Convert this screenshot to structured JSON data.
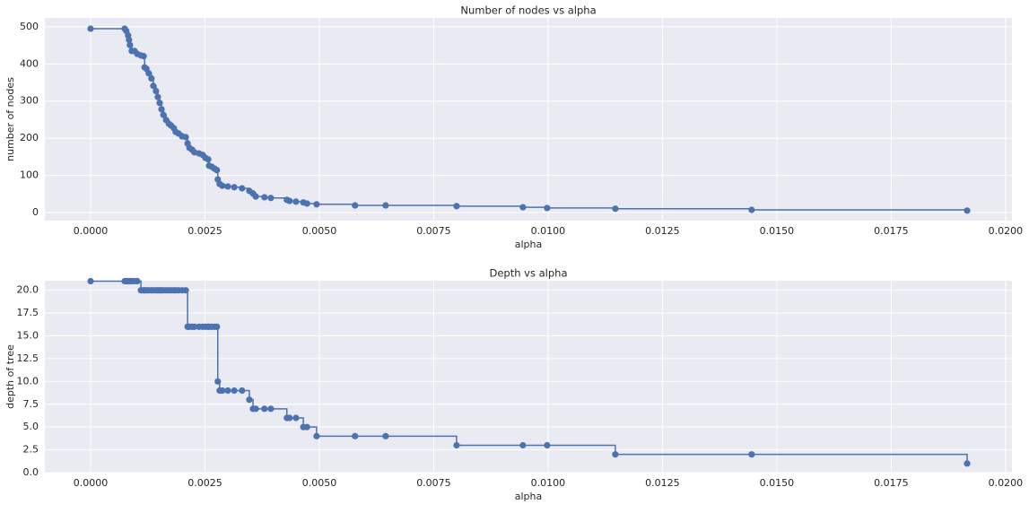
{
  "chart_data": [
    {
      "type": "step",
      "title": "Number of nodes vs alpha",
      "x_label": "alpha",
      "y_label": "number of nodes",
      "color": "#4c72b0",
      "grid": true,
      "x": [
        0,
        0.000745,
        0.00078,
        0.00082,
        0.00084,
        0.00086,
        0.0009,
        0.00096,
        0.00102,
        0.0011,
        0.00116,
        0.00118,
        0.00122,
        0.00127,
        0.00133,
        0.00137,
        0.00143,
        0.00147,
        0.00151,
        0.00155,
        0.00159,
        0.00165,
        0.00171,
        0.00176,
        0.00182,
        0.00186,
        0.00192,
        0.002,
        0.00208,
        0.00212,
        0.00216,
        0.00222,
        0.00227,
        0.00237,
        0.00245,
        0.00251,
        0.00257,
        0.00259,
        0.00265,
        0.00271,
        0.00276,
        0.00278,
        0.00282,
        0.00288,
        0.003,
        0.00314,
        0.00331,
        0.00347,
        0.00355,
        0.00361,
        0.0038,
        0.00394,
        0.00429,
        0.00435,
        0.00449,
        0.00465,
        0.00473,
        0.00494,
        0.00578,
        0.00645,
        0.008,
        0.00945,
        0.00998,
        0.01147,
        0.01445,
        0.01916
      ],
      "values": [
        495,
        495,
        489,
        477,
        465,
        451,
        435,
        435,
        427,
        423,
        421,
        391,
        387,
        375,
        361,
        341,
        327,
        311,
        295,
        278,
        263,
        249,
        239,
        234,
        227,
        217,
        213,
        205,
        203,
        186,
        174,
        169,
        162,
        159,
        155,
        147,
        143,
        126,
        123,
        118,
        114,
        89,
        77,
        72,
        70,
        68,
        65,
        58,
        51,
        43,
        41,
        39,
        34,
        31,
        29,
        27,
        24,
        22,
        19,
        19,
        17,
        14,
        12,
        10,
        7,
        5
      ],
      "xlim": [
        -0.001,
        0.02014
      ],
      "ylim": [
        -22,
        524
      ],
      "xticks": [
        {
          "value": 0,
          "label": "0.0000"
        },
        {
          "value": 0.0025,
          "label": "0.0025"
        },
        {
          "value": 0.005,
          "label": "0.0050"
        },
        {
          "value": 0.0075,
          "label": "0.0075"
        },
        {
          "value": 0.01,
          "label": "0.0100"
        },
        {
          "value": 0.0125,
          "label": "0.0125"
        },
        {
          "value": 0.015,
          "label": "0.0150"
        },
        {
          "value": 0.0175,
          "label": "0.0175"
        },
        {
          "value": 0.02,
          "label": "0.0200"
        }
      ],
      "yticks": [
        0,
        100,
        200,
        300,
        400,
        500
      ]
    },
    {
      "type": "step",
      "title": "Depth vs alpha",
      "x_label": "alpha",
      "y_label": "depth of tree",
      "color": "#4c72b0",
      "grid": true,
      "x": [
        0,
        0.000745,
        0.00078,
        0.00082,
        0.00084,
        0.00086,
        0.0009,
        0.00096,
        0.00102,
        0.0011,
        0.00116,
        0.00118,
        0.00122,
        0.00127,
        0.00133,
        0.00137,
        0.00143,
        0.00147,
        0.00151,
        0.00155,
        0.00159,
        0.00165,
        0.00171,
        0.00176,
        0.00182,
        0.00186,
        0.00192,
        0.002,
        0.00208,
        0.00212,
        0.00216,
        0.00222,
        0.00227,
        0.00237,
        0.00245,
        0.00251,
        0.00257,
        0.00259,
        0.00265,
        0.00271,
        0.00276,
        0.00278,
        0.00282,
        0.00288,
        0.003,
        0.00314,
        0.00331,
        0.00347,
        0.00355,
        0.00361,
        0.0038,
        0.00394,
        0.00429,
        0.00435,
        0.00449,
        0.00465,
        0.00473,
        0.00494,
        0.00578,
        0.00645,
        0.008,
        0.00945,
        0.00998,
        0.01147,
        0.01445,
        0.01916
      ],
      "values": [
        21,
        21,
        21,
        21,
        21,
        21,
        21,
        21,
        21,
        20,
        20,
        20,
        20,
        20,
        20,
        20,
        20,
        20,
        20,
        20,
        20,
        20,
        20,
        20,
        20,
        20,
        20,
        20,
        20,
        16,
        16,
        16,
        16,
        16,
        16,
        16,
        16,
        16,
        16,
        16,
        16,
        10,
        9,
        9,
        9,
        9,
        9,
        8,
        7,
        7,
        7,
        7,
        6,
        6,
        6,
        5,
        5,
        4,
        4,
        4,
        3,
        3,
        3,
        2,
        2,
        1
      ],
      "xlim": [
        -0.001,
        0.02014
      ],
      "ylim": [
        0,
        21.05
      ],
      "xticks": [
        {
          "value": 0,
          "label": "0.0000"
        },
        {
          "value": 0.0025,
          "label": "0.0025"
        },
        {
          "value": 0.005,
          "label": "0.0050"
        },
        {
          "value": 0.0075,
          "label": "0.0075"
        },
        {
          "value": 0.01,
          "label": "0.0100"
        },
        {
          "value": 0.0125,
          "label": "0.0125"
        },
        {
          "value": 0.015,
          "label": "0.0150"
        },
        {
          "value": 0.0175,
          "label": "0.0175"
        },
        {
          "value": 0.02,
          "label": "0.0200"
        }
      ],
      "yticks": [
        {
          "value": 0,
          "label": "0.0"
        },
        2.5,
        {
          "value": 5,
          "label": "5.0"
        },
        7.5,
        {
          "value": 10,
          "label": "10.0"
        },
        12.5,
        {
          "value": 15,
          "label": "15.0"
        },
        17.5,
        {
          "value": 20,
          "label": "20.0"
        }
      ]
    }
  ]
}
